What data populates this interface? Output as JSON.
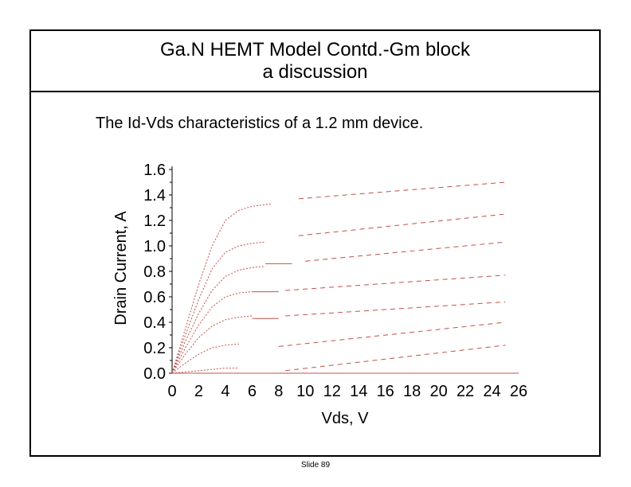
{
  "slide": {
    "title_line1": "Ga.N HEMT Model Contd.-Gm block",
    "title_line2": "a discussion",
    "subtitle": "The Id-Vds characteristics of a 1.2 mm device.",
    "footer": "Slide 89"
  },
  "colors": {
    "curve": "#c0504d",
    "frame": "#000000"
  },
  "chart_data": {
    "type": "line",
    "xlabel": "Vds, V",
    "ylabel": "Drain Current, A",
    "xlim": [
      0,
      26
    ],
    "ylim": [
      0,
      1.6
    ],
    "xticks": [
      "0",
      "2",
      "4",
      "6",
      "8",
      "10",
      "12",
      "14",
      "16",
      "18",
      "20",
      "22",
      "24",
      "26"
    ],
    "yticks": [
      "0.0",
      "0.2",
      "0.4",
      "0.6",
      "0.8",
      "1.0",
      "1.2",
      "1.4",
      "1.6"
    ],
    "grid": false,
    "legend": "none",
    "series": [
      {
        "x": [
          0,
          1,
          2,
          3,
          4,
          5,
          6,
          7.5
        ],
        "y": [
          0,
          0.35,
          0.7,
          1.0,
          1.2,
          1.28,
          1.31,
          1.33
        ]
      },
      {
        "x": [
          9.5,
          25
        ],
        "y": [
          1.37,
          1.5
        ]
      },
      {
        "x": [
          0,
          1,
          2,
          3,
          4,
          5,
          6,
          7
        ],
        "y": [
          0,
          0.3,
          0.58,
          0.82,
          0.95,
          1.0,
          1.02,
          1.03
        ]
      },
      {
        "x": [
          9.5,
          25
        ],
        "y": [
          1.08,
          1.25
        ]
      },
      {
        "x": [
          0,
          1,
          2,
          3,
          4,
          5,
          6,
          7
        ],
        "y": [
          0,
          0.25,
          0.47,
          0.65,
          0.76,
          0.81,
          0.83,
          0.84
        ]
      },
      {
        "x": [
          7,
          9
        ],
        "y": [
          0.86,
          0.86
        ]
      },
      {
        "x": [
          10,
          25
        ],
        "y": [
          0.88,
          1.03
        ]
      },
      {
        "x": [
          0,
          1,
          2,
          3,
          4,
          5,
          6
        ],
        "y": [
          0,
          0.2,
          0.38,
          0.52,
          0.6,
          0.63,
          0.64
        ]
      },
      {
        "x": [
          6,
          8
        ],
        "y": [
          0.64,
          0.64
        ]
      },
      {
        "x": [
          8.5,
          25
        ],
        "y": [
          0.65,
          0.77
        ]
      },
      {
        "x": [
          0,
          1,
          2,
          3,
          4,
          5,
          6
        ],
        "y": [
          0,
          0.15,
          0.28,
          0.37,
          0.42,
          0.44,
          0.45
        ]
      },
      {
        "x": [
          6,
          8
        ],
        "y": [
          0.43,
          0.43
        ]
      },
      {
        "x": [
          8.5,
          25
        ],
        "y": [
          0.45,
          0.56
        ]
      },
      {
        "x": [
          0,
          1,
          2,
          3,
          4,
          5
        ],
        "y": [
          0,
          0.08,
          0.15,
          0.2,
          0.22,
          0.23
        ]
      },
      {
        "x": [
          8,
          25
        ],
        "y": [
          0.21,
          0.4
        ]
      },
      {
        "x": [
          0,
          2,
          4,
          5
        ],
        "y": [
          0,
          0.02,
          0.04,
          0.04
        ]
      },
      {
        "x": [
          8.5,
          25
        ],
        "y": [
          0.02,
          0.22
        ]
      },
      {
        "x": [
          0,
          26
        ],
        "y": [
          0,
          0
        ]
      }
    ]
  }
}
